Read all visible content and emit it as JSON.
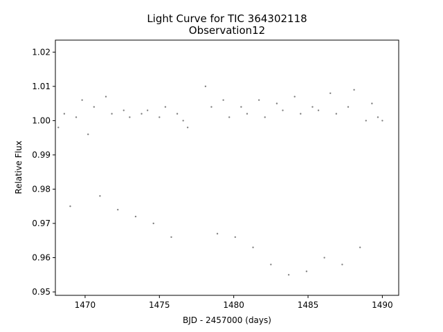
{
  "chart_data": {
    "type": "scatter",
    "title": "Light Curve for TIC 364302118",
    "subtitle": "Observation12",
    "xlabel": "BJD - 2457000 (days)",
    "ylabel": "Relative Flux",
    "xlim": [
      1468.0,
      1491.1
    ],
    "ylim": [
      0.949,
      1.0235
    ],
    "xticks": [
      1470,
      1475,
      1480,
      1485,
      1490
    ],
    "xtick_labels": [
      "1470",
      "1475",
      "1480",
      "1485",
      "1490"
    ],
    "yticks": [
      0.95,
      0.96,
      0.97,
      0.98,
      0.99,
      1.0,
      1.01,
      1.02
    ],
    "ytick_labels": [
      "0.95",
      "0.96",
      "0.97",
      "0.98",
      "0.99",
      "1.00",
      "1.01",
      "1.02"
    ],
    "grid": false,
    "marker_color": "#808080",
    "x_segments": [
      [
        1468.2,
        1476.9
      ],
      [
        1478.1,
        1490.0
      ]
    ],
    "series": [
      {
        "values_description_note": "",
        "x": [
          1468.2,
          1468.6,
          1469.0,
          1469.4,
          1469.8,
          1470.2,
          1470.6,
          1471.0,
          1471.4,
          1471.8,
          1472.2,
          1472.6,
          1473.0,
          1473.4,
          1473.8,
          1474.2,
          1474.6,
          1475.0,
          1475.4,
          1475.8,
          1476.2,
          1476.6,
          1476.9,
          1478.1,
          1478.5,
          1478.9,
          1479.3,
          1479.7,
          1480.1,
          1480.5,
          1480.9,
          1481.3,
          1481.7,
          1482.1,
          1482.5,
          1482.9,
          1483.3,
          1483.7,
          1484.1,
          1484.5,
          1484.9,
          1485.3,
          1485.7,
          1486.1,
          1486.5,
          1486.9,
          1487.3,
          1487.7,
          1488.1,
          1488.5,
          1488.9,
          1489.3,
          1489.7,
          1490.0
        ],
        "y": [
          0.998,
          1.002,
          0.975,
          1.001,
          1.006,
          0.996,
          1.004,
          0.978,
          1.007,
          1.002,
          0.974,
          1.003,
          1.001,
          0.972,
          1.002,
          1.003,
          0.97,
          1.001,
          1.004,
          0.966,
          1.002,
          1.0,
          0.998,
          1.01,
          1.004,
          0.967,
          1.006,
          1.001,
          0.966,
          1.004,
          1.002,
          0.963,
          1.006,
          1.001,
          0.958,
          1.005,
          1.003,
          0.955,
          1.007,
          1.002,
          0.956,
          1.004,
          1.003,
          0.96,
          1.008,
          1.002,
          0.958,
          1.004,
          1.009,
          0.963,
          1.0,
          1.005,
          1.001,
          1.0
        ]
      }
    ]
  }
}
